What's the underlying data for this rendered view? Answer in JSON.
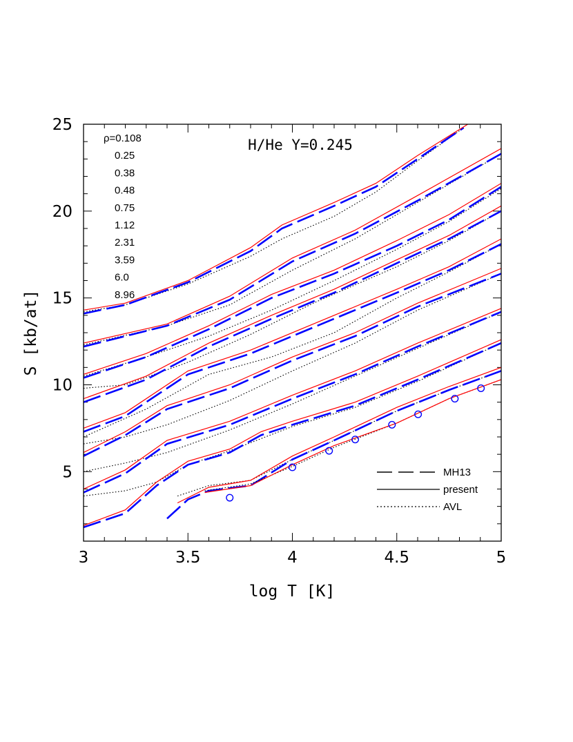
{
  "chart_data": {
    "type": "line",
    "title": "",
    "annotation": "H/He Y=0.245",
    "xlabel": "log T [K]",
    "ylabel": "S [kb/at]",
    "xlim": [
      3,
      5
    ],
    "ylim": [
      1,
      25
    ],
    "xticks": [
      "3",
      "3.5",
      "4",
      "4.5",
      "5"
    ],
    "yticks": [
      "5",
      "10",
      "15",
      "20",
      "25"
    ],
    "density_labels": [
      "ρ=0.108",
      "0.25",
      "0.38",
      "0.48",
      "0.75",
      "1.12",
      "2.31",
      "3.59",
      "6.0",
      "8.96"
    ],
    "legend": [
      {
        "label": "MH13",
        "style": "dashed",
        "color": "#0000ff"
      },
      {
        "label": "present",
        "style": "solid",
        "color": "#ff0000"
      },
      {
        "label": "AVL",
        "style": "dotted",
        "color": "#000000"
      }
    ],
    "legend_position": "lower-right",
    "colors": {
      "present": "#ff0000",
      "MH13": "#0000ff",
      "AVL": "#000000",
      "points": "#0000ff"
    },
    "curves": [
      {
        "rho": "0.108",
        "present": [
          [
            3,
            14.3
          ],
          [
            3.2,
            14.7
          ],
          [
            3.5,
            16.0
          ],
          [
            3.8,
            17.9
          ],
          [
            3.95,
            19.2
          ],
          [
            4.2,
            20.5
          ],
          [
            4.4,
            21.6
          ],
          [
            4.6,
            23.2
          ],
          [
            4.84,
            25.0
          ]
        ],
        "mh13": [
          [
            3,
            14.1
          ],
          [
            3.2,
            14.6
          ],
          [
            3.5,
            15.9
          ],
          [
            3.8,
            17.7
          ],
          [
            3.95,
            19.0
          ],
          [
            4.2,
            20.3
          ],
          [
            4.4,
            21.4
          ],
          [
            4.6,
            23.0
          ],
          [
            4.82,
            24.8
          ]
        ],
        "avl": [
          [
            3,
            14.2
          ],
          [
            3.2,
            14.6
          ],
          [
            3.5,
            15.8
          ],
          [
            3.8,
            17.4
          ],
          [
            3.95,
            18.4
          ],
          [
            4.2,
            19.7
          ],
          [
            4.4,
            21.1
          ],
          [
            4.6,
            22.9
          ],
          [
            4.82,
            24.8
          ]
        ]
      },
      {
        "rho": "0.25",
        "present": [
          [
            3,
            12.4
          ],
          [
            3.4,
            13.5
          ],
          [
            3.7,
            15.1
          ],
          [
            4,
            17.3
          ],
          [
            4.3,
            18.9
          ],
          [
            4.6,
            20.9
          ],
          [
            5,
            23.6
          ]
        ],
        "mh13": [
          [
            3,
            12.2
          ],
          [
            3.4,
            13.4
          ],
          [
            3.7,
            14.9
          ],
          [
            4,
            17.1
          ],
          [
            4.3,
            18.7
          ],
          [
            4.6,
            20.6
          ],
          [
            5,
            23.3
          ]
        ],
        "avl": [
          [
            3,
            12.3
          ],
          [
            3.4,
            13.4
          ],
          [
            3.7,
            14.6
          ],
          [
            4,
            16.6
          ],
          [
            4.3,
            18.4
          ],
          [
            4.6,
            20.5
          ],
          [
            5,
            23.3
          ]
        ]
      },
      {
        "rho": "0.38",
        "present": [
          [
            3,
            10.6
          ],
          [
            3.3,
            11.8
          ],
          [
            3.6,
            13.4
          ],
          [
            3.9,
            15.2
          ],
          [
            4.2,
            16.6
          ],
          [
            4.5,
            18.3
          ],
          [
            4.75,
            19.8
          ],
          [
            5,
            21.6
          ]
        ],
        "mh13": [
          [
            3,
            10.4
          ],
          [
            3.3,
            11.6
          ],
          [
            3.6,
            13.2
          ],
          [
            3.9,
            15.0
          ],
          [
            4.2,
            16.4
          ],
          [
            4.5,
            18.0
          ],
          [
            4.75,
            19.5
          ],
          [
            5,
            21.4
          ]
        ],
        "avl": [
          [
            3,
            10.5
          ],
          [
            3.3,
            11.6
          ],
          [
            3.6,
            12.8
          ],
          [
            3.9,
            14.3
          ],
          [
            4.2,
            16.0
          ],
          [
            4.5,
            17.8
          ],
          [
            4.75,
            19.4
          ],
          [
            5,
            21.3
          ]
        ]
      },
      {
        "rho": "0.48",
        "present": [
          [
            3,
            9.2
          ],
          [
            3.3,
            10.5
          ],
          [
            3.6,
            12.4
          ],
          [
            3.9,
            14.0
          ],
          [
            4.2,
            15.5
          ],
          [
            4.5,
            17.2
          ],
          [
            4.75,
            18.6
          ],
          [
            5,
            20.3
          ]
        ],
        "mh13": [
          [
            3,
            9.0
          ],
          [
            3.3,
            10.3
          ],
          [
            3.6,
            12.2
          ],
          [
            3.9,
            13.8
          ],
          [
            4.2,
            15.3
          ],
          [
            4.5,
            17.0
          ],
          [
            4.75,
            18.4
          ],
          [
            5,
            20.0
          ]
        ],
        "avl": [
          [
            3,
            9.8
          ],
          [
            3.2,
            10.0
          ],
          [
            3.5,
            11.3
          ],
          [
            3.8,
            12.9
          ],
          [
            4.1,
            14.7
          ],
          [
            4.5,
            16.8
          ],
          [
            4.75,
            18.3
          ],
          [
            5,
            20.0
          ]
        ]
      },
      {
        "rho": "0.75",
        "present": [
          [
            3,
            7.5
          ],
          [
            3.2,
            8.4
          ],
          [
            3.5,
            10.8
          ],
          [
            3.8,
            12.0
          ],
          [
            4.1,
            13.5
          ],
          [
            4.5,
            15.5
          ],
          [
            4.75,
            16.8
          ],
          [
            5,
            18.4
          ]
        ],
        "mh13": [
          [
            3,
            7.3
          ],
          [
            3.2,
            8.2
          ],
          [
            3.5,
            10.6
          ],
          [
            3.8,
            11.8
          ],
          [
            4.1,
            13.3
          ],
          [
            4.5,
            15.3
          ],
          [
            4.75,
            16.6
          ],
          [
            5,
            18.1
          ]
        ],
        "avl": [
          [
            3,
            7.0
          ],
          [
            3.3,
            8.6
          ],
          [
            3.6,
            10.6
          ],
          [
            3.9,
            11.6
          ],
          [
            4.2,
            13.0
          ],
          [
            4.5,
            15.0
          ],
          [
            4.75,
            16.5
          ],
          [
            5,
            18.1
          ]
        ]
      },
      {
        "rho": "1.12",
        "present": [
          [
            3,
            6.1
          ],
          [
            3.2,
            7.3
          ],
          [
            3.4,
            8.8
          ],
          [
            3.7,
            10.0
          ],
          [
            4,
            11.6
          ],
          [
            4.3,
            13.0
          ],
          [
            4.6,
            14.7
          ],
          [
            5,
            16.7
          ]
        ],
        "mh13": [
          [
            3,
            5.9
          ],
          [
            3.2,
            7.1
          ],
          [
            3.4,
            8.6
          ],
          [
            3.7,
            9.8
          ],
          [
            4,
            11.4
          ],
          [
            4.3,
            12.8
          ],
          [
            4.6,
            14.5
          ],
          [
            5,
            16.4
          ]
        ],
        "avl": [
          [
            3,
            6.6
          ],
          [
            3.2,
            7.0
          ],
          [
            3.4,
            7.7
          ],
          [
            3.7,
            9.1
          ],
          [
            4,
            10.8
          ],
          [
            4.3,
            12.4
          ],
          [
            4.6,
            14.3
          ],
          [
            5,
            16.4
          ]
        ]
      },
      {
        "rho": "2.31",
        "present": [
          [
            3,
            4.0
          ],
          [
            3.2,
            5.1
          ],
          [
            3.4,
            6.8
          ],
          [
            3.7,
            7.9
          ],
          [
            4,
            9.4
          ],
          [
            4.3,
            10.8
          ],
          [
            4.6,
            12.4
          ],
          [
            5,
            14.4
          ]
        ],
        "mh13": [
          [
            3,
            3.8
          ],
          [
            3.2,
            4.9
          ],
          [
            3.4,
            6.6
          ],
          [
            3.7,
            7.7
          ],
          [
            4,
            9.2
          ],
          [
            4.3,
            10.6
          ],
          [
            4.6,
            12.2
          ],
          [
            5,
            14.2
          ]
        ],
        "avl": [
          [
            3,
            5.0
          ],
          [
            3.2,
            5.5
          ],
          [
            3.4,
            6.1
          ],
          [
            3.7,
            7.4
          ],
          [
            4,
            8.9
          ],
          [
            4.3,
            10.5
          ],
          [
            4.6,
            12.1
          ],
          [
            5,
            14.2
          ]
        ]
      },
      {
        "rho": "3.59",
        "present": [
          [
            3,
            1.9
          ],
          [
            3.2,
            2.8
          ],
          [
            3.35,
            4.4
          ],
          [
            3.5,
            5.6
          ],
          [
            3.7,
            6.3
          ],
          [
            3.85,
            7.3
          ],
          [
            4,
            7.9
          ],
          [
            4.3,
            9.0
          ],
          [
            4.6,
            10.5
          ],
          [
            5,
            12.6
          ]
        ],
        "mh13": [
          [
            3,
            1.8
          ],
          [
            3.2,
            2.6
          ],
          [
            3.35,
            4.2
          ],
          [
            3.5,
            5.4
          ],
          [
            3.7,
            6.1
          ],
          [
            3.85,
            7.1
          ],
          [
            4,
            7.7
          ],
          [
            4.3,
            8.8
          ],
          [
            4.6,
            10.3
          ],
          [
            5,
            12.4
          ]
        ],
        "avl": [
          [
            3,
            3.6
          ],
          [
            3.2,
            3.9
          ],
          [
            3.35,
            4.4
          ],
          [
            3.5,
            5.4
          ],
          [
            3.7,
            6.2
          ],
          [
            3.85,
            6.9
          ],
          [
            4,
            7.6
          ],
          [
            4.3,
            8.7
          ],
          [
            4.6,
            10.2
          ],
          [
            5,
            12.4
          ]
        ]
      },
      {
        "rho": "6.0",
        "present": [
          [
            3.45,
            3.2
          ],
          [
            3.6,
            4.1
          ],
          [
            3.8,
            4.5
          ],
          [
            4,
            5.9
          ],
          [
            4.2,
            7.0
          ],
          [
            4.5,
            8.7
          ],
          [
            4.75,
            9.9
          ],
          [
            5,
            11.0
          ]
        ],
        "mh13": [
          [
            3.4,
            2.3
          ],
          [
            3.5,
            3.4
          ],
          [
            3.6,
            3.9
          ],
          [
            3.8,
            4.2
          ],
          [
            4,
            5.7
          ],
          [
            4.2,
            6.8
          ],
          [
            4.5,
            8.5
          ],
          [
            4.75,
            9.7
          ],
          [
            5,
            10.8
          ]
        ],
        "avl": [
          [
            3.45,
            3.6
          ],
          [
            3.6,
            4.2
          ],
          [
            3.8,
            4.5
          ],
          [
            4,
            5.7
          ],
          [
            4.2,
            6.8
          ],
          [
            4.5,
            8.5
          ],
          [
            4.75,
            9.7
          ],
          [
            5,
            10.8
          ]
        ]
      },
      {
        "rho": "8.96",
        "present": [
          [
            3.58,
            3.8
          ],
          [
            3.8,
            4.2
          ],
          [
            4,
            5.4
          ],
          [
            4.2,
            6.5
          ],
          [
            4.5,
            7.8
          ],
          [
            4.75,
            9.2
          ],
          [
            5,
            10.3
          ]
        ],
        "mh13": [],
        "avl": [
          [
            3.58,
            3.9
          ],
          [
            3.8,
            4.3
          ],
          [
            4,
            5.3
          ],
          [
            4.2,
            6.4
          ],
          [
            4.5,
            7.8
          ],
          [
            4.75,
            9.2
          ],
          [
            5,
            10.3
          ]
        ],
        "points": [
          [
            3.7,
            3.5
          ],
          [
            4.0,
            5.25
          ],
          [
            4.176,
            6.2
          ],
          [
            4.301,
            6.85
          ],
          [
            4.477,
            7.7
          ],
          [
            4.602,
            8.3
          ],
          [
            4.778,
            9.2
          ],
          [
            4.903,
            9.8
          ]
        ]
      }
    ]
  }
}
